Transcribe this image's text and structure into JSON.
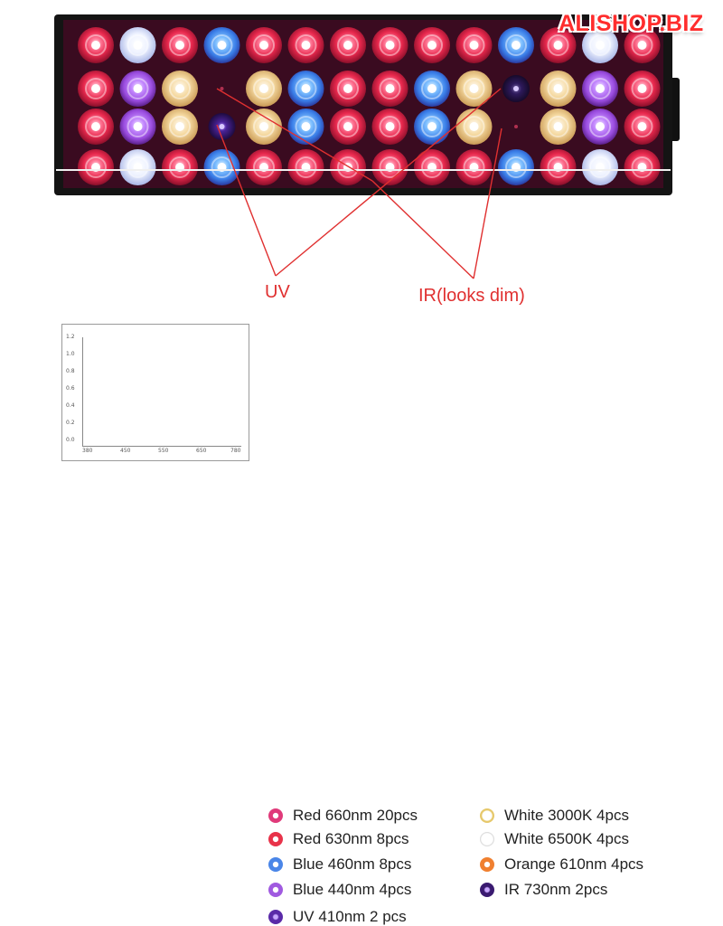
{
  "watermark": "ALISHOP.BIZ",
  "callouts": {
    "uv": "UV",
    "ir": "IR(looks dim)"
  },
  "led_grid": {
    "rows": [
      [
        "red",
        "white",
        "red",
        "blue",
        "red",
        "red",
        "red",
        "red",
        "red",
        "red",
        "blue",
        "red",
        "white",
        "red"
      ],
      [
        "red",
        "violet",
        "warm",
        "empty",
        "warm",
        "blue",
        "red",
        "red",
        "blue",
        "warm",
        "ir",
        "warm",
        "violet",
        "red"
      ],
      [
        "red",
        "violet",
        "warm",
        "uv",
        "warm",
        "blue",
        "red",
        "red",
        "blue",
        "warm",
        "empty",
        "warm",
        "violet",
        "red"
      ],
      [
        "red",
        "white",
        "red",
        "blue",
        "red",
        "red",
        "red",
        "red",
        "red",
        "red",
        "blue",
        "red",
        "white",
        "red"
      ]
    ]
  },
  "colors": {
    "red": "#e8284d",
    "white": "#f2f4ff",
    "blue": "#3a7ee8",
    "violet": "#9b4de0",
    "warm": "#f5d9a0",
    "uv": "#4a2398",
    "ir": "#2e1a5c",
    "panel": "#3a0b20",
    "callout": "#e03030"
  },
  "spectrum": {
    "y_ticks": [
      "1.2",
      "1.0",
      "0.8",
      "0.6",
      "0.4",
      "0.2",
      "0.0"
    ],
    "x_ticks": [
      "380",
      "450",
      "550",
      "650",
      "780"
    ]
  },
  "legend": [
    {
      "label": "Red 660nm 20pcs",
      "icon": "red-led-icon",
      "color": "#e03a7a"
    },
    {
      "label": "Red 630nm 8pcs",
      "icon": "red-led-icon",
      "color": "#e8334a"
    },
    {
      "label": "Blue 460nm 8pcs",
      "icon": "blue-led-icon",
      "color": "#4a86e8"
    },
    {
      "label": "Blue 440nm 4pcs",
      "icon": "violet-led-icon",
      "color": "#a05ae0"
    },
    {
      "label": "UV 410nm 2 pcs",
      "icon": "uv-led-icon",
      "color": "#5a2aa8"
    },
    {
      "label": "White 3000K 4pcs",
      "icon": "warm-white-led-icon",
      "color": "#e6c86a"
    },
    {
      "label": "White 6500K 4pcs",
      "icon": "cool-white-led-icon",
      "color": "#f4f4f4"
    },
    {
      "label": "Orange 610nm 4pcs",
      "icon": "orange-led-icon",
      "color": "#f08030"
    },
    {
      "label": "IR 730nm 2pcs",
      "icon": "ir-led-icon",
      "color": "#3a1a70"
    }
  ]
}
